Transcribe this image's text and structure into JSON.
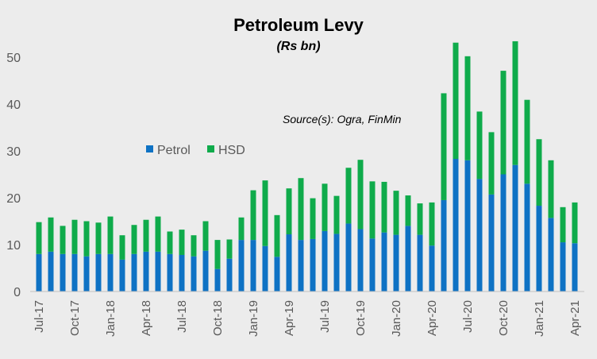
{
  "chart_data": {
    "type": "bar",
    "stacked": true,
    "title": "Petroleum Levy",
    "subtitle": "(Rs bn)",
    "annotation": "Source(s): Ogra, FinMin",
    "xlabel": "",
    "ylabel": "",
    "ylim": [
      0,
      55
    ],
    "yticks": [
      0,
      10,
      20,
      30,
      40,
      50
    ],
    "grid": false,
    "legend_position": "upper-left",
    "categories": [
      "Jul-17",
      "Aug-17",
      "Sep-17",
      "Oct-17",
      "Nov-17",
      "Dec-17",
      "Jan-18",
      "Feb-18",
      "Mar-18",
      "Apr-18",
      "May-18",
      "Jun-18",
      "Jul-18",
      "Aug-18",
      "Sep-18",
      "Oct-18",
      "Nov-18",
      "Dec-18",
      "Jan-19",
      "Feb-19",
      "Mar-19",
      "Apr-19",
      "May-19",
      "Jun-19",
      "Jul-19",
      "Aug-19",
      "Sep-19",
      "Oct-19",
      "Nov-19",
      "Dec-19",
      "Jan-20",
      "Feb-20",
      "Mar-20",
      "Apr-20",
      "May-20",
      "Jun-20",
      "Jul-20",
      "Aug-20",
      "Sep-20",
      "Oct-20",
      "Nov-20",
      "Dec-20",
      "Jan-21",
      "Feb-21",
      "Mar-21",
      "Apr-21"
    ],
    "xtick_labels": [
      "Jul-17",
      "Oct-17",
      "Jan-18",
      "Apr-18",
      "Jul-18",
      "Oct-18",
      "Jan-19",
      "Apr-19",
      "Jul-19",
      "Oct-19",
      "Jan-20",
      "Apr-20",
      "Jul-20",
      "Oct-20",
      "Jan-21",
      "Apr-21"
    ],
    "series": [
      {
        "name": "Petrol",
        "color": "#0e72c4",
        "values": [
          8.0,
          8.5,
          8.0,
          8.0,
          7.5,
          8.0,
          8.0,
          6.8,
          8.0,
          8.5,
          8.5,
          8.0,
          7.8,
          7.5,
          8.7,
          4.8,
          7.0,
          11.0,
          11.0,
          9.7,
          7.4,
          12.2,
          11.0,
          11.2,
          12.9,
          12.3,
          14.5,
          13.3,
          11.3,
          12.6,
          12.1,
          14.0,
          12.1,
          9.8,
          19.5,
          28.3,
          28.0,
          24.0,
          20.7,
          25.0,
          27.0,
          23.0,
          18.3,
          15.7,
          10.5,
          10.3
        ]
      },
      {
        "name": "HSD",
        "color": "#0fab4b",
        "values": [
          6.8,
          7.3,
          6.0,
          7.3,
          7.5,
          6.7,
          8.0,
          5.2,
          6.2,
          6.8,
          7.5,
          4.8,
          5.4,
          4.5,
          6.3,
          6.2,
          4.1,
          4.8,
          10.6,
          14.0,
          8.9,
          9.8,
          13.2,
          8.7,
          10.1,
          8.1,
          11.9,
          14.8,
          12.2,
          10.8,
          9.4,
          6.5,
          6.7,
          9.2,
          22.8,
          24.8,
          22.2,
          14.4,
          13.3,
          22.1,
          26.4,
          17.9,
          14.2,
          12.3,
          7.5,
          8.7
        ]
      }
    ]
  }
}
